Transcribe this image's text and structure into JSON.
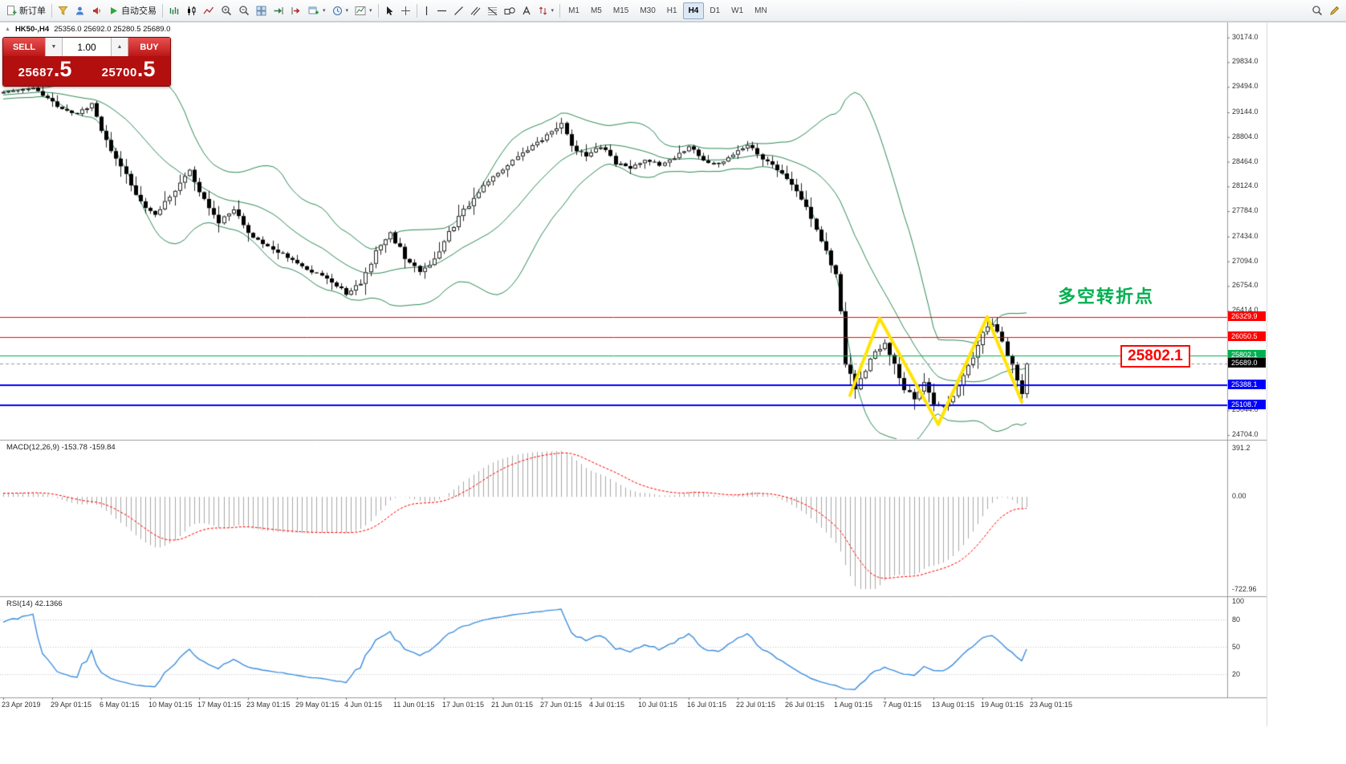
{
  "icons": {
    "dropdown": "▾",
    "caret_up": "▲",
    "caret_down": "▼",
    "title_marker": "▲"
  },
  "toolbar": {
    "new_order": "新订单",
    "autotrading": "自动交易",
    "timeframes": [
      "M1",
      "M5",
      "M15",
      "M30",
      "H1",
      "H4",
      "D1",
      "W1",
      "MN"
    ],
    "active_timeframe": "H4"
  },
  "chart_header": {
    "symbol_period": "HK50-,H4",
    "ohlc": "25356.0 25692.0 25280.5 25689.0"
  },
  "trade_widget": {
    "sell_label": "SELL",
    "buy_label": "BUY",
    "volume": "1.00",
    "sell_price_int": "25687",
    "sell_price_frac": ".5",
    "buy_price_int": "25700",
    "buy_price_frac": ".5"
  },
  "annotations": {
    "turning_point": "多空转折点",
    "level_callout": "25802.1"
  },
  "panels": {
    "macd_label": "MACD(12,26,9) -153.78 -159.84",
    "macd_scale": [
      "391.2",
      "0.00",
      "-722.96"
    ],
    "rsi_label": "RSI(14) 42.1366",
    "rsi_scale": [
      "100",
      "80",
      "50",
      "20"
    ]
  },
  "price_scale_ticks": [
    "30174.0",
    "29834.0",
    "29494.0",
    "29144.0",
    "28804.0",
    "28464.0",
    "28124.0",
    "27784.0",
    "27434.0",
    "27094.0",
    "26754.0",
    "26414.0",
    "25044.0",
    "24704.0"
  ],
  "time_axis": [
    "23 Apr 2019",
    "29 Apr 01:15",
    "6 May 01:15",
    "10 May 01:15",
    "17 May 01:15",
    "23 May 01:15",
    "29 May 01:15",
    "4 Jun 01:15",
    "11 Jun 01:15",
    "17 Jun 01:15",
    "21 Jun 01:15",
    "27 Jun 01:15",
    "4 Jul 01:15",
    "10 Jul 01:15",
    "16 Jul 01:15",
    "22 Jul 01:15",
    "26 Jul 01:15",
    "1 Aug 01:15",
    "7 Aug 01:15",
    "13 Aug 01:15",
    "19 Aug 01:15",
    "23 Aug 01:15"
  ],
  "chart_data": {
    "type": "candlestick",
    "symbol": "HK50-",
    "timeframe": "H4",
    "bars": 210,
    "y_range": [
      24650,
      30380
    ],
    "close_anchors": [
      [
        0,
        29430
      ],
      [
        6,
        29480
      ],
      [
        11,
        29230
      ],
      [
        15,
        29120
      ],
      [
        18,
        29260
      ],
      [
        21,
        28750
      ],
      [
        25,
        28280
      ],
      [
        28,
        27900
      ],
      [
        31,
        27750
      ],
      [
        35,
        28050
      ],
      [
        38,
        28330
      ],
      [
        41,
        27950
      ],
      [
        44,
        27650
      ],
      [
        47,
        27800
      ],
      [
        50,
        27480
      ],
      [
        53,
        27320
      ],
      [
        57,
        27200
      ],
      [
        60,
        27050
      ],
      [
        63,
        26950
      ],
      [
        66,
        26870
      ],
      [
        70,
        26650
      ],
      [
        73,
        26800
      ],
      [
        77,
        27350
      ],
      [
        79,
        27480
      ],
      [
        82,
        27150
      ],
      [
        85,
        26950
      ],
      [
        88,
        27120
      ],
      [
        91,
        27480
      ],
      [
        94,
        27800
      ],
      [
        97,
        28050
      ],
      [
        100,
        28250
      ],
      [
        103,
        28420
      ],
      [
        106,
        28580
      ],
      [
        109,
        28720
      ],
      [
        112,
        28900
      ],
      [
        114,
        28980
      ],
      [
        116,
        28650
      ],
      [
        119,
        28550
      ],
      [
        122,
        28680
      ],
      [
        125,
        28450
      ],
      [
        128,
        28380
      ],
      [
        131,
        28500
      ],
      [
        134,
        28420
      ],
      [
        137,
        28520
      ],
      [
        140,
        28680
      ],
      [
        143,
        28480
      ],
      [
        146,
        28420
      ],
      [
        149,
        28580
      ],
      [
        152,
        28700
      ],
      [
        155,
        28520
      ],
      [
        158,
        28350
      ],
      [
        161,
        28150
      ],
      [
        164,
        27850
      ],
      [
        166,
        27550
      ],
      [
        168,
        27250
      ],
      [
        170,
        26900
      ],
      [
        171,
        26420
      ],
      [
        172,
        25700
      ],
      [
        174,
        25350
      ],
      [
        176,
        25600
      ],
      [
        178,
        25850
      ],
      [
        180,
        25950
      ],
      [
        182,
        25650
      ],
      [
        184,
        25350
      ],
      [
        186,
        25200
      ],
      [
        188,
        25400
      ],
      [
        190,
        25150
      ],
      [
        192,
        25080
      ],
      [
        194,
        25250
      ],
      [
        196,
        25500
      ],
      [
        198,
        25800
      ],
      [
        200,
        26100
      ],
      [
        202,
        26250
      ],
      [
        204,
        26000
      ],
      [
        206,
        25650
      ],
      [
        207,
        25450
      ],
      [
        208,
        25300
      ],
      [
        209,
        25689
      ]
    ],
    "levels": [
      {
        "price": 26329.9,
        "label": "26329.9",
        "color": "#ff0000",
        "width": 1,
        "style": "solid"
      },
      {
        "price": 26050.5,
        "label": "26050.5",
        "color": "#ff0000",
        "width": 1,
        "style": "solid"
      },
      {
        "price": 25802.1,
        "label": "25802.1",
        "color": "#00b050",
        "width": 1,
        "style": "solid"
      },
      {
        "price": 25689.0,
        "label": "25689.0",
        "color": "#999999",
        "width": 1,
        "style": "dashed",
        "label_bg": "#000000"
      },
      {
        "price": 25388.1,
        "label": "25388.1",
        "color": "#0000ff",
        "width": 2,
        "style": "solid"
      },
      {
        "price": 25108.7,
        "label": "25108.7",
        "color": "#0000ff",
        "width": 2,
        "style": "solid"
      }
    ],
    "zigzag": {
      "color": "#ffe400",
      "width": 4,
      "points": [
        [
          173,
          25250
        ],
        [
          179,
          26310
        ],
        [
          191,
          24850
        ],
        [
          201,
          26330
        ],
        [
          208,
          25160
        ]
      ]
    },
    "indicators": {
      "bollinger": {
        "period": 20,
        "deviation": 2,
        "color": "#2e8b57"
      },
      "macd": {
        "fast": 12,
        "slow": 26,
        "signal": 9,
        "value": -153.78,
        "signal_value": -159.84,
        "range": [
          -722.96,
          391.2
        ],
        "hist_color": "#a8a8a8",
        "signal_color": "#ff0000"
      },
      "rsi": {
        "period": 14,
        "value": 42.1366,
        "levels": [
          80,
          50,
          20
        ],
        "color": "#3e8edd"
      }
    }
  }
}
